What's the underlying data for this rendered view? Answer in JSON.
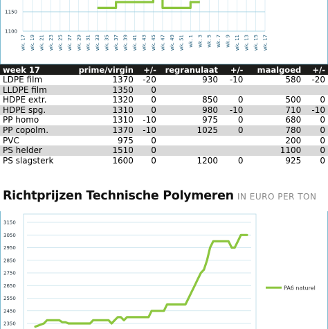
{
  "chart_data": [
    {
      "type": "line",
      "x": [
        "wk. 17",
        "wk. 19",
        "wk. 21",
        "wk. 23",
        "wk. 25",
        "wk. 27",
        "wk. 29",
        "wk. 31",
        "wk. 33",
        "wk. 35",
        "wk. 37",
        "wk. 39",
        "wk. 41",
        "wk. 43",
        "wk. 45",
        "wk. 47",
        "wk. 49",
        "wk. 51",
        "wk. 1",
        "wk. 3",
        "wk. 5",
        "wk. 7",
        "wk. 9",
        "wk. 11",
        "wk. 13",
        "wk. 15",
        "wk. 17"
      ],
      "y_ticks": [
        1150,
        1100
      ],
      "series": [
        {
          "color": "#8cc63f",
          "values": [
            null,
            null,
            null,
            null,
            null,
            null,
            null,
            null,
            1160,
            1160,
            1175,
            1175,
            1175,
            1175,
            1190,
            1160,
            1160,
            1160,
            1175,
            1175,
            null,
            null,
            null,
            null,
            null,
            null,
            null
          ]
        }
      ],
      "grid": true
    },
    {
      "type": "line",
      "y_ticks": [
        3150,
        3050,
        2950,
        2850,
        2750,
        2650,
        2550,
        2450,
        2350
      ],
      "series": [
        {
          "name": "PA6 naturel",
          "color": "#8cc63f",
          "values": [
            2325,
            2350,
            2375,
            2375,
            2375,
            2375,
            2375,
            2360,
            2360,
            2350,
            2350,
            2350,
            2350,
            2350,
            2350,
            2350,
            2350,
            2375,
            2375,
            2375,
            2375,
            2375,
            2375,
            2350,
            2375,
            2400,
            2400,
            2375,
            2400,
            2400,
            2400,
            2400,
            2400,
            2400,
            2400,
            2400,
            2450,
            2450,
            2450,
            2450,
            2450,
            2500,
            2500,
            2500,
            2500,
            2500,
            2500,
            2500,
            2550,
            2600,
            2650,
            2700,
            2750,
            2775,
            2850,
            2950,
            3000,
            3000,
            3000,
            3000,
            3000,
            3000,
            2950,
            2950,
            3000,
            3050,
            3050,
            3050
          ]
        }
      ],
      "legend": "right",
      "grid": true
    }
  ],
  "table": {
    "headers": [
      "week 17",
      "prime/virgin",
      "+/-",
      "regranulaat",
      "+/-",
      "maalgoed",
      "+/-"
    ],
    "rows": [
      [
        "LDPE film",
        "1370",
        "-20",
        "930",
        "-10",
        "580",
        "-20"
      ],
      [
        "LLDPE film",
        "1350",
        "0",
        "",
        "",
        "",
        ""
      ],
      [
        "HDPE extr.",
        "1320",
        "0",
        "850",
        "0",
        "500",
        "0"
      ],
      [
        "HDPE spg.",
        "1310",
        "0",
        "980",
        "-10",
        "710",
        "-10"
      ],
      [
        "PP homo",
        "1310",
        "-10",
        "975",
        "0",
        "680",
        "0"
      ],
      [
        "PP copolm.",
        "1370",
        "-10",
        "1025",
        "0",
        "780",
        "0"
      ],
      [
        "PVC",
        "975",
        "0",
        "",
        "",
        "200",
        "0"
      ],
      [
        "PS helder",
        "1510",
        "0",
        "",
        "",
        "1100",
        "0"
      ],
      [
        "PS slagsterk",
        "1600",
        "0",
        "1200",
        "0",
        "925",
        "0"
      ]
    ]
  },
  "section": {
    "title": "Richtprijzen Technische Polymeren",
    "unit": "IN EURO PER TON"
  }
}
